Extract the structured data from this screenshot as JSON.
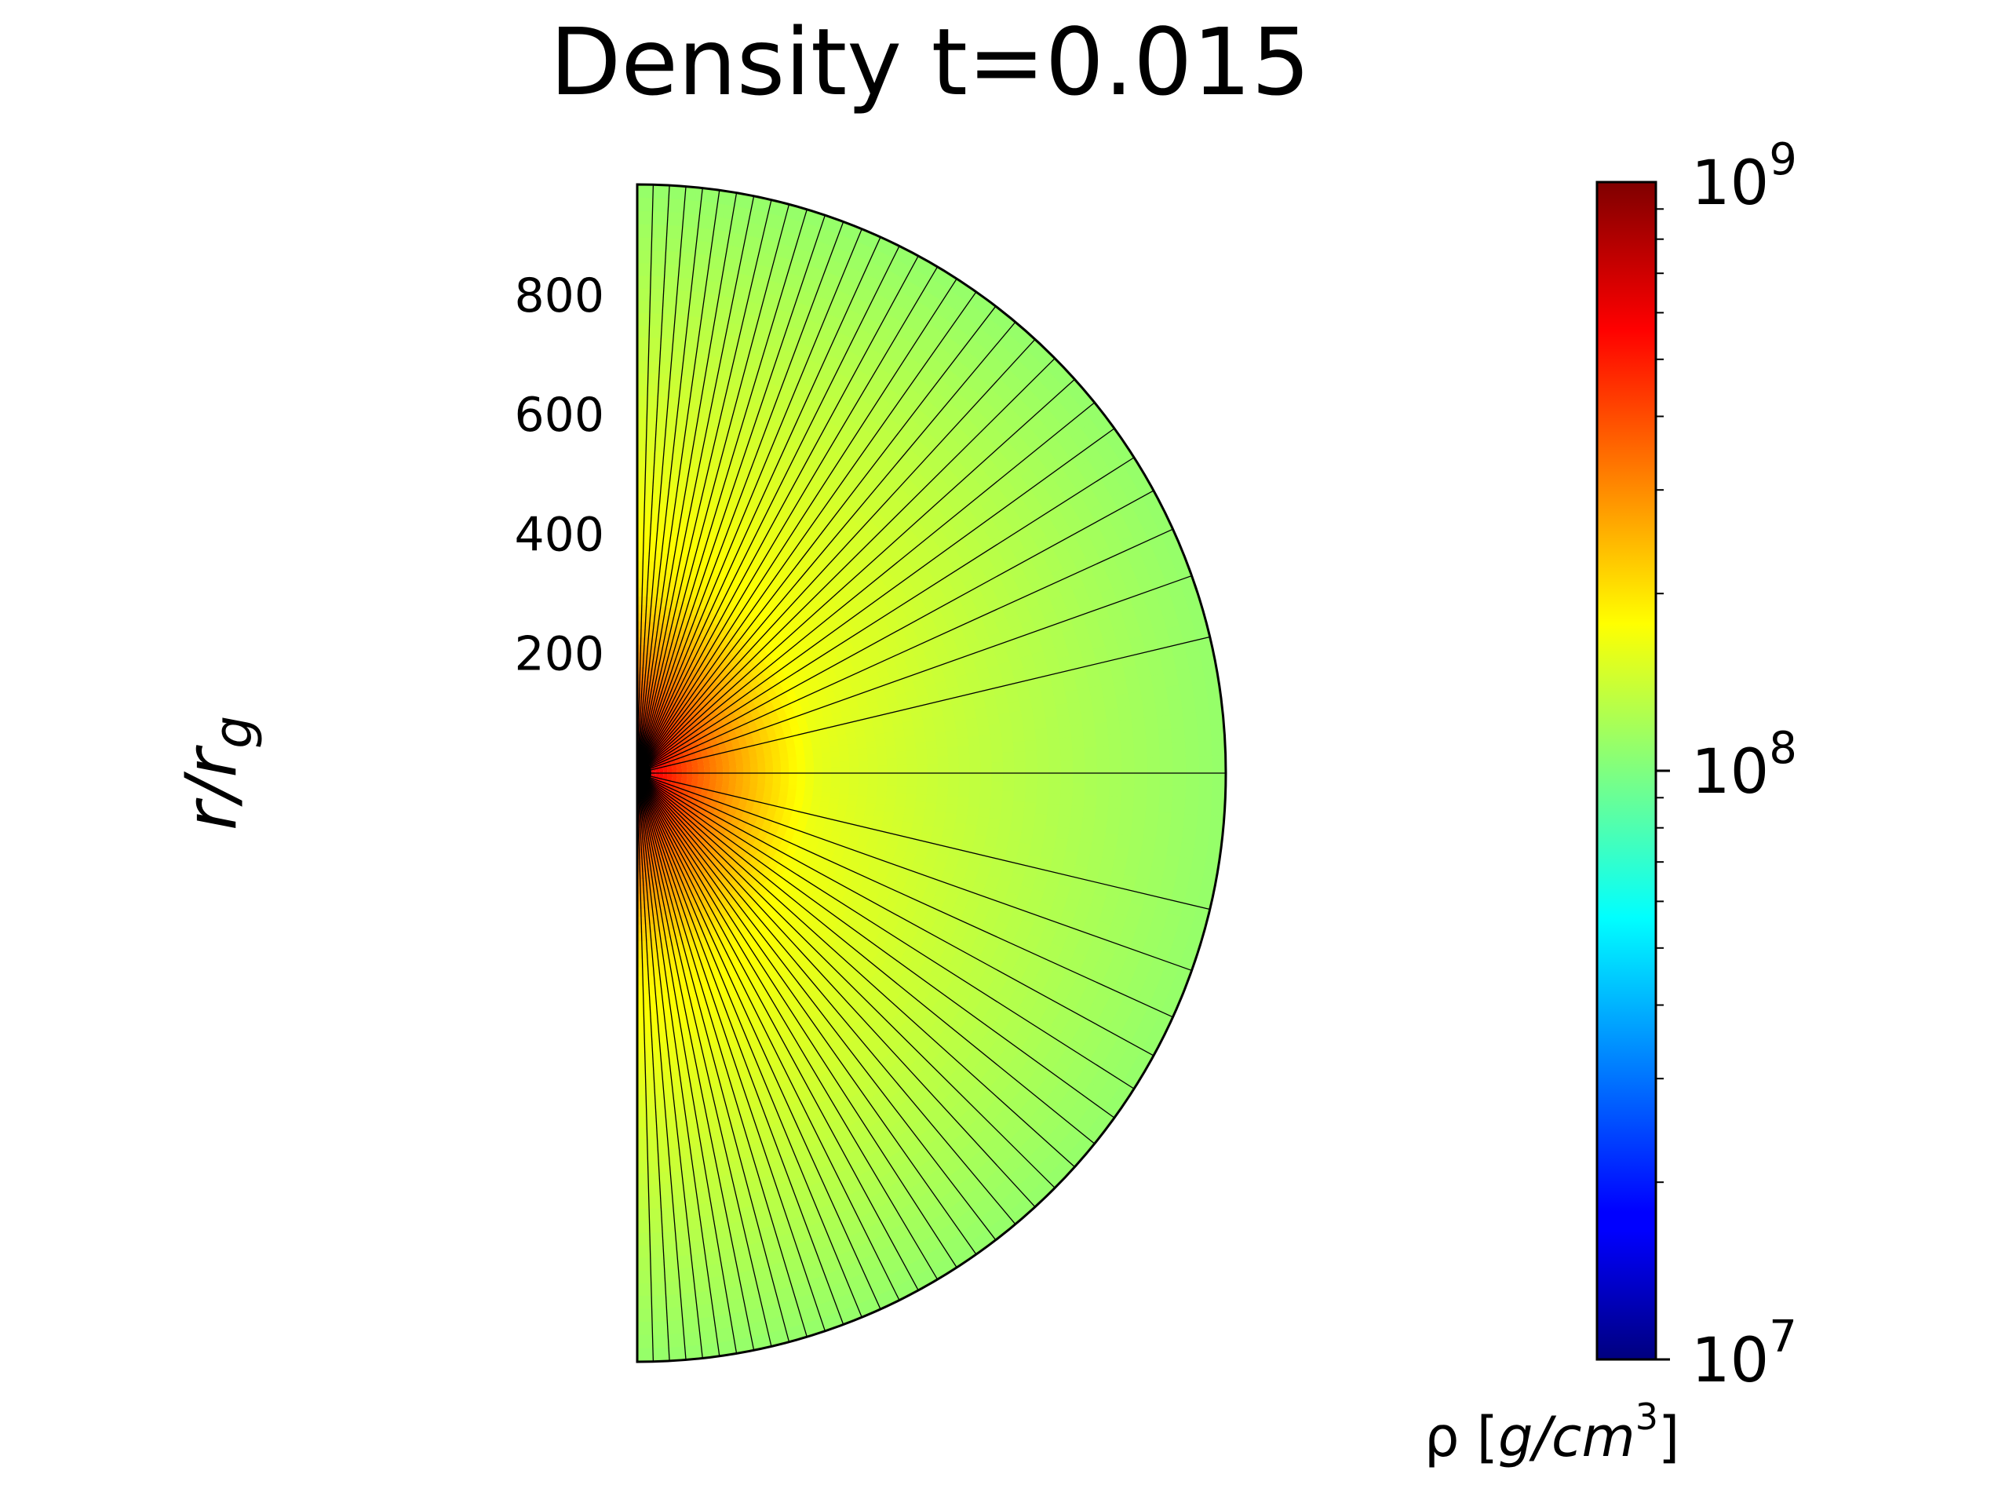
{
  "chart_data": {
    "type": "heatmap",
    "geometry": "polar half-disk (right hemisphere)",
    "title": "Density t=0.015",
    "ylabel": "r/r_g",
    "yticks": [
      200,
      400,
      600,
      800
    ],
    "r_max": 985,
    "colormap": "jet",
    "colorbar": {
      "scale": "log",
      "range": [
        10000000,
        1000000000
      ],
      "ticks": [
        {
          "value": 10000000,
          "base": "10",
          "exp": "7"
        },
        {
          "value": 100000000,
          "base": "10",
          "exp": "8"
        },
        {
          "value": 1000000000,
          "base": "10",
          "exp": "9"
        }
      ],
      "label_prefix": "ρ [",
      "label_unit": "g/cm",
      "label_exp": "3",
      "label_suffix": "]"
    },
    "density_profile": {
      "description": "highest near origin along polar axis, decreasing outward",
      "center_value": 1000000000,
      "outer_value": 110000000,
      "axis_value_at_300": 200000000,
      "equator_value_at_300": 160000000
    },
    "grid": {
      "angular_cells": 64
    }
  }
}
